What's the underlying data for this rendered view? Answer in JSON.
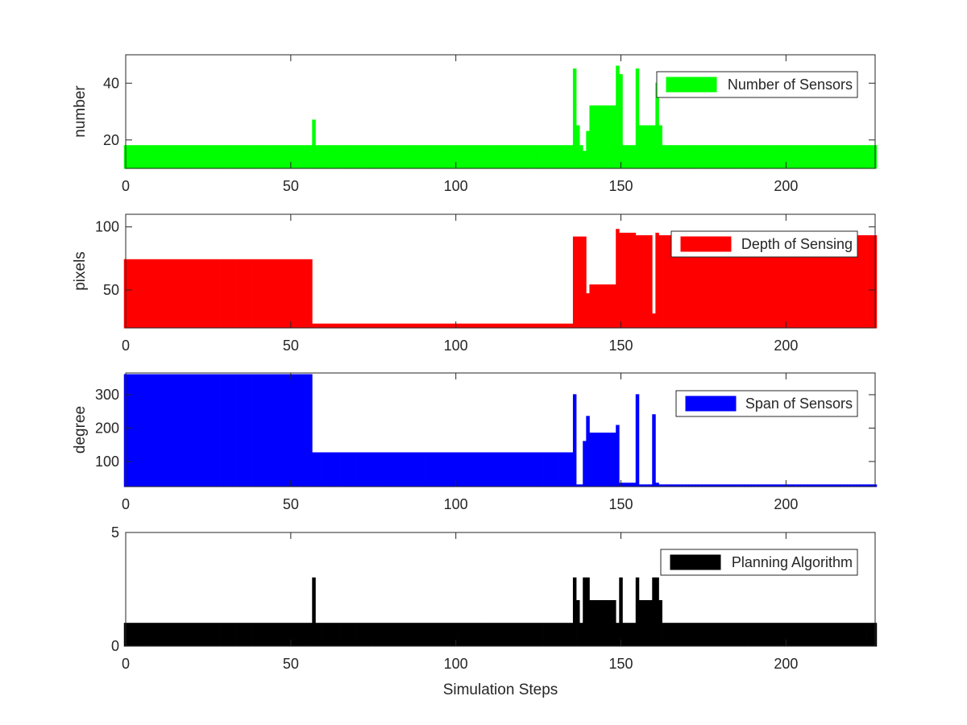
{
  "chart_data": [
    {
      "type": "bar",
      "series": [
        {
          "name": "Number of Sensors",
          "color": "#00ff00",
          "values": [
            [
              0,
              18
            ],
            [
              1,
              18
            ],
            [
              56,
              18
            ],
            [
              57,
              27
            ],
            [
              58,
              18
            ],
            [
              135,
              18
            ],
            [
              136,
              45
            ],
            [
              137,
              25
            ],
            [
              138,
              18
            ],
            [
              139,
              16
            ],
            [
              140,
              23
            ],
            [
              141,
              32
            ],
            [
              148,
              32
            ],
            [
              149,
              46
            ],
            [
              150,
              43
            ],
            [
              151,
              18
            ],
            [
              154,
              18
            ],
            [
              155,
              45
            ],
            [
              156,
              25
            ],
            [
              160,
              25
            ],
            [
              161,
              40
            ],
            [
              162,
              25
            ],
            [
              163,
              18
            ],
            [
              227,
              18
            ]
          ]
        }
      ],
      "xlabel": "",
      "ylabel": "number",
      "xlim": [
        0,
        227
      ],
      "ylim": [
        10,
        50
      ],
      "xticks": [
        0,
        50,
        100,
        150,
        200
      ],
      "yticks": [
        20,
        40
      ],
      "legend": "top-right"
    },
    {
      "type": "bar",
      "series": [
        {
          "name": "Depth of Sensing",
          "color": "#ff0000",
          "values": [
            [
              0,
              74
            ],
            [
              56,
              74
            ],
            [
              57,
              23
            ],
            [
              135,
              23
            ],
            [
              136,
              92
            ],
            [
              139,
              92
            ],
            [
              140,
              47
            ],
            [
              141,
              54
            ],
            [
              148,
              54
            ],
            [
              149,
              98
            ],
            [
              150,
              95
            ],
            [
              154,
              95
            ],
            [
              155,
              93
            ],
            [
              159,
              93
            ],
            [
              160,
              31
            ],
            [
              161,
              95
            ],
            [
              162,
              93
            ],
            [
              227,
              93
            ]
          ]
        }
      ],
      "xlabel": "",
      "ylabel": "pixels",
      "xlim": [
        0,
        227
      ],
      "ylim": [
        20,
        110
      ],
      "xticks": [
        0,
        50,
        100,
        150,
        200
      ],
      "yticks": [
        50,
        100
      ],
      "legend": "top-right"
    },
    {
      "type": "bar",
      "series": [
        {
          "name": "Span of Sensors",
          "color": "#0000ff",
          "values": [
            [
              0,
              360
            ],
            [
              56,
              360
            ],
            [
              57,
              126
            ],
            [
              135,
              126
            ],
            [
              136,
              300
            ],
            [
              137,
              30
            ],
            [
              138,
              30
            ],
            [
              139,
              160
            ],
            [
              140,
              235
            ],
            [
              141,
              185
            ],
            [
              148,
              185
            ],
            [
              149,
              208
            ],
            [
              150,
              35
            ],
            [
              154,
              35
            ],
            [
              155,
              300
            ],
            [
              156,
              30
            ],
            [
              159,
              30
            ],
            [
              160,
              240
            ],
            [
              161,
              35
            ],
            [
              162,
              30
            ],
            [
              227,
              30
            ]
          ]
        }
      ],
      "xlabel": "",
      "ylabel": "degree",
      "xlim": [
        0,
        227
      ],
      "ylim": [
        25,
        365
      ],
      "xticks": [
        0,
        50,
        100,
        150,
        200
      ],
      "yticks": [
        100,
        200,
        300
      ],
      "legend": "top-right"
    },
    {
      "type": "bar",
      "series": [
        {
          "name": "Planning Algorithm",
          "color": "#000000",
          "values": [
            [
              0,
              1
            ],
            [
              56,
              1
            ],
            [
              57,
              3
            ],
            [
              58,
              1
            ],
            [
              135,
              1
            ],
            [
              136,
              3
            ],
            [
              137,
              2
            ],
            [
              138,
              1
            ],
            [
              139,
              3
            ],
            [
              140,
              3
            ],
            [
              141,
              2
            ],
            [
              148,
              2
            ],
            [
              149,
              1
            ],
            [
              150,
              3
            ],
            [
              151,
              1
            ],
            [
              154,
              1
            ],
            [
              155,
              3
            ],
            [
              156,
              2
            ],
            [
              159,
              2
            ],
            [
              160,
              3
            ],
            [
              161,
              3
            ],
            [
              162,
              2
            ],
            [
              163,
              1
            ],
            [
              227,
              1
            ]
          ]
        }
      ],
      "xlabel": "Simulation Steps",
      "ylabel": "",
      "xlim": [
        0,
        227
      ],
      "ylim": [
        0,
        5
      ],
      "xticks": [
        0,
        50,
        100,
        150,
        200
      ],
      "yticks": [
        0,
        5
      ],
      "legend": "top-right"
    }
  ]
}
